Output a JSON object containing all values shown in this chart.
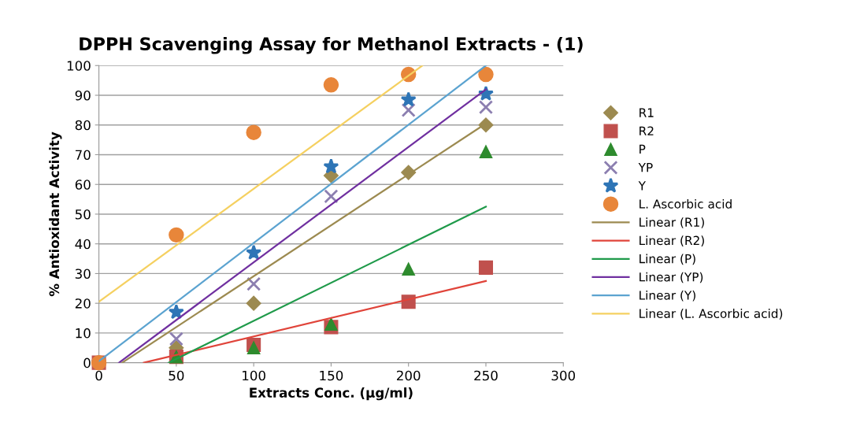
{
  "chart_data": {
    "type": "scatter",
    "title": "DPPH Scavenging Assay for Methanol Extracts - (1)",
    "xlabel": "Extracts Conc. (µg/ml)",
    "ylabel": "% Antioxidant Activity",
    "x": [
      0,
      50,
      100,
      150,
      200,
      250
    ],
    "series": [
      {
        "name": "R1",
        "marker": "diamond",
        "color": "#9c8a50",
        "values": [
          null,
          5,
          20,
          63,
          64,
          80
        ]
      },
      {
        "name": "R2",
        "marker": "square",
        "color": "#c0504d",
        "values": [
          0,
          2,
          6,
          12,
          20.5,
          32
        ]
      },
      {
        "name": "P",
        "marker": "triangle",
        "color": "#2e8b2e",
        "values": [
          null,
          2,
          5,
          13,
          31.5,
          71
        ]
      },
      {
        "name": "YP",
        "marker": "cross",
        "color": "#8c7fb0",
        "values": [
          null,
          8,
          26.5,
          56,
          85,
          86
        ]
      },
      {
        "name": "Y",
        "marker": "star",
        "color": "#2e75b6",
        "values": [
          0,
          17,
          37,
          66,
          88.5,
          90.5
        ]
      },
      {
        "name": "L. Ascorbic acid",
        "marker": "circle",
        "color": "#e8863a",
        "values": [
          0,
          43,
          77.5,
          93.5,
          97,
          97
        ]
      },
      {
        "name": "Linear (R1)",
        "type": "line",
        "color": "#9c8a50",
        "x": [
          15,
          250
        ],
        "values": [
          0,
          80.5
        ]
      },
      {
        "name": "Linear (R2)",
        "type": "line",
        "color": "#e0443a",
        "x": [
          29,
          250
        ],
        "values": [
          0,
          27.5
        ]
      },
      {
        "name": "Linear (P)",
        "type": "line",
        "color": "#1f9a4a",
        "x": [
          45,
          250
        ],
        "values": [
          0,
          52.5
        ]
      },
      {
        "name": "Linear (YP)",
        "type": "line",
        "color": "#7030a0",
        "x": [
          13,
          250
        ],
        "values": [
          0,
          92
        ]
      },
      {
        "name": "Linear (Y)",
        "type": "line",
        "color": "#5ba3d0",
        "x": [
          0,
          250
        ],
        "values": [
          0.5,
          100
        ]
      },
      {
        "name": "Linear (L. Ascorbic acid)",
        "type": "line",
        "color": "#f5d060",
        "x": [
          0,
          209
        ],
        "values": [
          20.5,
          100
        ]
      }
    ],
    "xlim": [
      0,
      300
    ],
    "xticks": [
      0,
      50,
      100,
      150,
      200,
      250,
      300
    ],
    "ylim": [
      0,
      100
    ],
    "yticks": [
      0,
      10,
      20,
      30,
      40,
      50,
      60,
      70,
      80,
      90,
      100
    ],
    "grid": "y",
    "legend": "right"
  }
}
